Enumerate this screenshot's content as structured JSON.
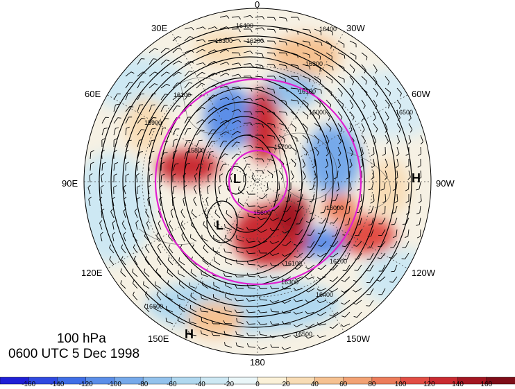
{
  "title": {
    "level": "100 hPa",
    "time": "0600 UTC 5 Dec 1998"
  },
  "longitude_labels": {
    "n0": "0",
    "n30w": "30W",
    "n60w": "60W",
    "n90w": "90W",
    "n120w": "120W",
    "n150w": "150W",
    "n180": "180",
    "n150e": "150E",
    "n120e": "120E",
    "n90e": "90E",
    "n60e": "60E",
    "n30e": "30E"
  },
  "pressure_centers": [
    {
      "letter": "L"
    },
    {
      "letter": "L"
    },
    {
      "letter": "H"
    },
    {
      "letter": "H"
    }
  ],
  "contour_labels": [
    "16400",
    "16300",
    "16200",
    "16100",
    "16000",
    "15900",
    "15800",
    "16500",
    "16600",
    "15700",
    "15600"
  ],
  "colorbar": {
    "ticks": [
      "-160",
      "-140",
      "-120",
      "-100",
      "-80",
      "-60",
      "-40",
      "-20",
      "0",
      "20",
      "40",
      "60",
      "80",
      "100",
      "120",
      "140",
      "160"
    ],
    "colors": [
      "#1f1fd6",
      "#2f49e0",
      "#3f6ee6",
      "#5b8ee8",
      "#76a9ea",
      "#93c2ec",
      "#b0d8ef",
      "#cde8f3",
      "#eaf6f8",
      "#fbf1d8",
      "#f8dcb5",
      "#f5c191",
      "#f2a274",
      "#ec7c5a",
      "#e24d44",
      "#c92a30",
      "#a31621",
      "#7e0d18"
    ]
  }
}
